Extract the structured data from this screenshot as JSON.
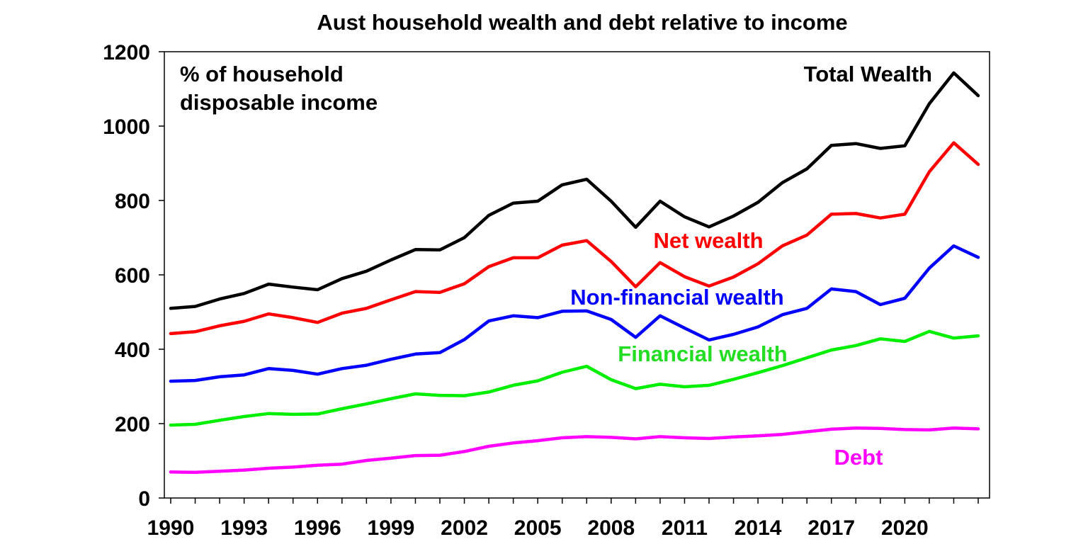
{
  "chart_data": {
    "type": "line",
    "title": "Aust household wealth and debt relative to income",
    "ylabel": "% of household disposable income",
    "ylabel_lines": [
      "% of household",
      "disposable income"
    ],
    "xlabel": "",
    "ylim": [
      0,
      1200
    ],
    "yticks": [
      0,
      200,
      400,
      600,
      800,
      1000,
      1200
    ],
    "xlim": [
      1990,
      2023
    ],
    "xticks": [
      "1990",
      "1993",
      "1996",
      "1999",
      "2002",
      "2005",
      "2008",
      "2011",
      "2014",
      "2017",
      "2020"
    ],
    "grid": false,
    "legend": "inline-labels",
    "x": [
      1990,
      1991,
      1992,
      1993,
      1994,
      1995,
      1996,
      1997,
      1998,
      1999,
      2000,
      2001,
      2002,
      2003,
      2004,
      2005,
      2006,
      2007,
      2008,
      2009,
      2010,
      2011,
      2012,
      2013,
      2014,
      2015,
      2016,
      2017,
      2018,
      2019,
      2020,
      2021,
      2022,
      2023
    ],
    "series": [
      {
        "name": "Total Wealth",
        "color": "#000000",
        "values": [
          510,
          515,
          535,
          550,
          575,
          567,
          560,
          590,
          610,
          640,
          668,
          667,
          700,
          760,
          793,
          798,
          842,
          857,
          798,
          728,
          798,
          756,
          729,
          758,
          795,
          848,
          885,
          948,
          953,
          940,
          947,
          1060,
          1143,
          1082
        ]
      },
      {
        "name": "Net wealth",
        "color": "#ff0000",
        "values": [
          442,
          447,
          463,
          475,
          495,
          485,
          472,
          497,
          510,
          533,
          555,
          553,
          576,
          622,
          646,
          646,
          680,
          692,
          636,
          568,
          633,
          595,
          570,
          594,
          630,
          678,
          707,
          763,
          765,
          753,
          763,
          877,
          955,
          897
        ]
      },
      {
        "name": "Non-financial wealth",
        "color": "#0000ff",
        "values": [
          314,
          316,
          326,
          331,
          348,
          343,
          333,
          348,
          357,
          373,
          387,
          391,
          426,
          476,
          490,
          485,
          502,
          503,
          480,
          432,
          490,
          457,
          425,
          440,
          460,
          493,
          510,
          562,
          555,
          520,
          537,
          618,
          678,
          647
        ]
      },
      {
        "name": "Financial wealth",
        "color": "#00ee00",
        "values": [
          196,
          198,
          209,
          219,
          227,
          225,
          226,
          240,
          253,
          267,
          280,
          276,
          275,
          285,
          303,
          315,
          338,
          354,
          318,
          294,
          306,
          299,
          303,
          319,
          337,
          356,
          377,
          398,
          410,
          428,
          421,
          448,
          430,
          436
        ]
      },
      {
        "name": "Debt",
        "color": "#ff00ff",
        "values": [
          70,
          69,
          72,
          75,
          80,
          83,
          88,
          91,
          101,
          107,
          114,
          115,
          125,
          139,
          148,
          154,
          162,
          165,
          163,
          159,
          165,
          162,
          160,
          164,
          167,
          171,
          178,
          185,
          188,
          187,
          184,
          183,
          188,
          186
        ]
      }
    ]
  }
}
